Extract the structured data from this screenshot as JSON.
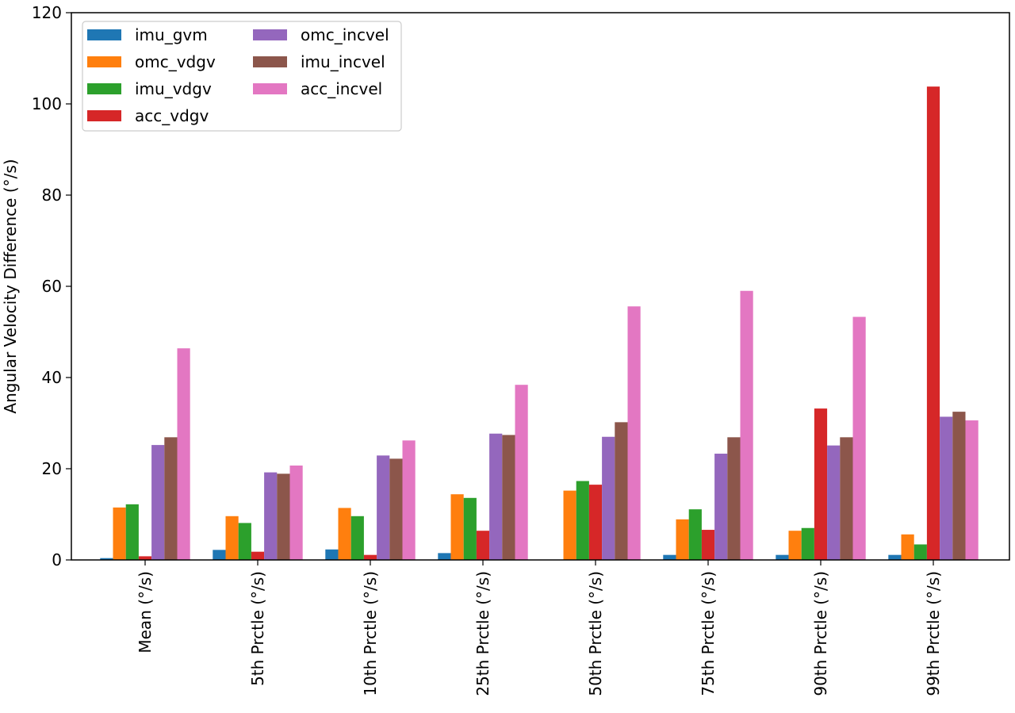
{
  "chart_data": {
    "type": "bar",
    "title": "",
    "xlabel": "",
    "ylabel": "Angular Velocity Difference (°/s)",
    "ylim": [
      0,
      120
    ],
    "yticks": [
      0,
      20,
      40,
      60,
      80,
      100,
      120
    ],
    "grid": false,
    "legend_placement": "top-left",
    "legend_columns": 2,
    "categories": [
      "Mean (°/s)",
      "5th Prctle (°/s)",
      "10th Prctle (°/s)",
      "25th Prctle (°/s)",
      "50th Prctle (°/s)",
      "75th Prctle (°/s)",
      "90th Prctle (°/s)",
      "99th Prctle (°/s)"
    ],
    "series": [
      {
        "name": "imu_gvm",
        "color": "#1f77b4",
        "values": [
          0.4,
          2.2,
          2.3,
          1.5,
          0.0,
          1.1,
          1.1,
          1.1
        ]
      },
      {
        "name": "omc_vdgv",
        "color": "#ff7f0e",
        "values": [
          11.5,
          9.6,
          11.4,
          14.4,
          15.2,
          8.9,
          6.4,
          5.6
        ]
      },
      {
        "name": "imu_vdgv",
        "color": "#2ca02c",
        "values": [
          12.2,
          8.1,
          9.6,
          13.6,
          17.3,
          11.1,
          7.0,
          3.4
        ]
      },
      {
        "name": "acc_vdgv",
        "color": "#d62728",
        "values": [
          0.8,
          1.8,
          1.1,
          6.4,
          16.5,
          6.6,
          33.2,
          103.8
        ]
      },
      {
        "name": "omc_incvel",
        "color": "#9467bd",
        "values": [
          25.2,
          19.2,
          22.9,
          27.7,
          27.0,
          23.3,
          25.1,
          31.4
        ]
      },
      {
        "name": "imu_incvel",
        "color": "#8c564b",
        "values": [
          26.9,
          18.9,
          22.2,
          27.4,
          30.2,
          26.9,
          26.9,
          32.5
        ]
      },
      {
        "name": "acc_incvel",
        "color": "#e377c2",
        "values": [
          46.4,
          20.7,
          26.2,
          38.4,
          55.6,
          59.0,
          53.3,
          30.6
        ]
      }
    ]
  }
}
